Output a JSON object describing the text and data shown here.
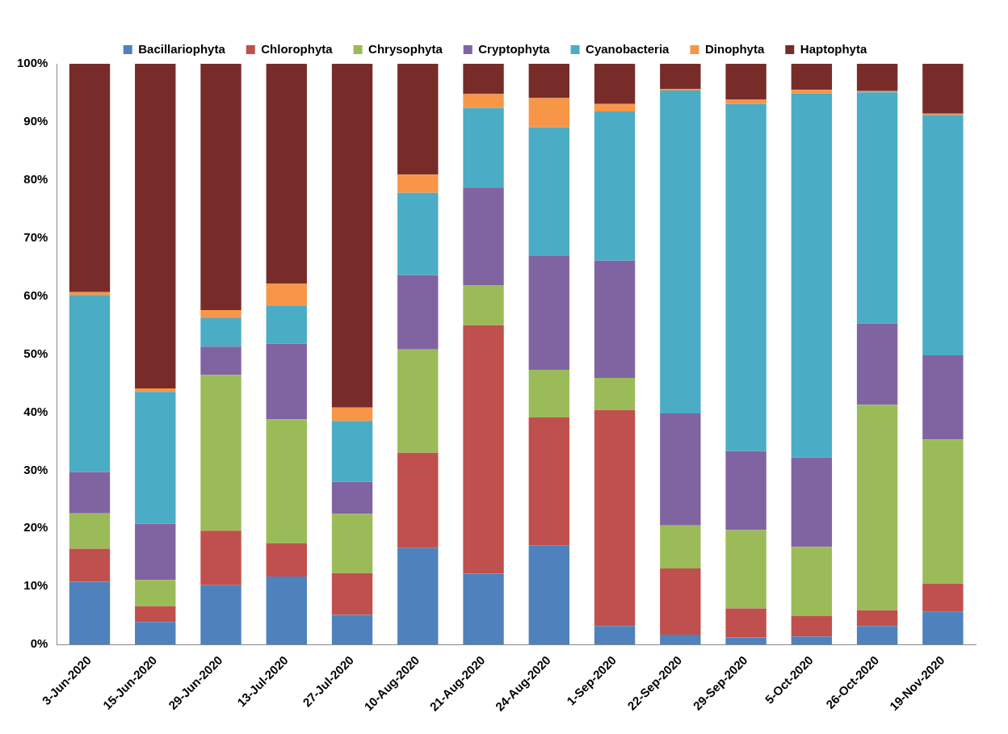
{
  "chart_data": {
    "type": "bar",
    "stacked": true,
    "categories": [
      "3-Jun-2020",
      "15-Jun-2020",
      "29-Jun-2020",
      "13-Jul-2020",
      "27-Jul-2020",
      "10-Aug-2020",
      "21-Aug-2020",
      "24-Aug-2020",
      "1-Sep-2020",
      "22-Sep-2020",
      "29-Sep-2020",
      "5-Oct-2020",
      "26-Oct-2020",
      "19-Nov-2020"
    ],
    "series": [
      {
        "name": "Bacillariophyta",
        "color": "#4f81bd",
        "values": [
          10.8,
          3.9,
          10.2,
          11.7,
          5.1,
          16.6,
          12.2,
          17.1,
          3.2,
          1.7,
          1.2,
          1.4,
          3.2,
          5.7
        ]
      },
      {
        "name": "Chlorophyta",
        "color": "#c0504d",
        "values": [
          5.7,
          2.7,
          9.4,
          5.7,
          7.2,
          16.4,
          42.8,
          22.0,
          37.2,
          11.4,
          5.0,
          3.5,
          2.7,
          4.8
        ]
      },
      {
        "name": "Chrysophyta",
        "color": "#9bbb59",
        "values": [
          6.1,
          4.5,
          26.8,
          21.4,
          10.2,
          17.8,
          6.9,
          8.2,
          5.5,
          7.4,
          13.5,
          11.9,
          35.4,
          24.8
        ]
      },
      {
        "name": "Cryptophyta",
        "color": "#8064a2",
        "values": [
          7.1,
          9.7,
          4.9,
          13.0,
          5.5,
          12.8,
          16.8,
          19.6,
          20.2,
          19.3,
          13.6,
          15.4,
          14.0,
          14.5
        ]
      },
      {
        "name": "Cyanobacteria",
        "color": "#4bacc6",
        "values": [
          30.5,
          22.7,
          4.9,
          6.6,
          10.5,
          14.2,
          13.7,
          22.2,
          25.7,
          55.6,
          59.8,
          62.7,
          39.8,
          41.4
        ]
      },
      {
        "name": "Dinophyta",
        "color": "#f79646",
        "values": [
          0.5,
          0.6,
          1.4,
          3.7,
          2.3,
          3.1,
          2.4,
          5.0,
          1.3,
          0.3,
          0.7,
          0.6,
          0.2,
          0.2
        ]
      },
      {
        "name": "Haptophyta",
        "color": "#772c2a",
        "values": [
          39.3,
          55.9,
          42.4,
          37.9,
          59.2,
          19.1,
          5.2,
          5.9,
          6.9,
          4.3,
          6.2,
          4.5,
          4.7,
          8.6
        ]
      }
    ],
    "ylim": [
      0,
      100
    ],
    "yticks": [
      {
        "value": 0,
        "label": "0%"
      },
      {
        "value": 10,
        "label": "10%"
      },
      {
        "value": 20,
        "label": "20%"
      },
      {
        "value": 30,
        "label": "30%"
      },
      {
        "value": 40,
        "label": "40%"
      },
      {
        "value": 50,
        "label": "50%"
      },
      {
        "value": 60,
        "label": "60%"
      },
      {
        "value": 70,
        "label": "70%"
      },
      {
        "value": 80,
        "label": "80%"
      },
      {
        "value": 90,
        "label": "90%"
      },
      {
        "value": 100,
        "label": "100%"
      }
    ],
    "legend": "top",
    "grid": false
  }
}
